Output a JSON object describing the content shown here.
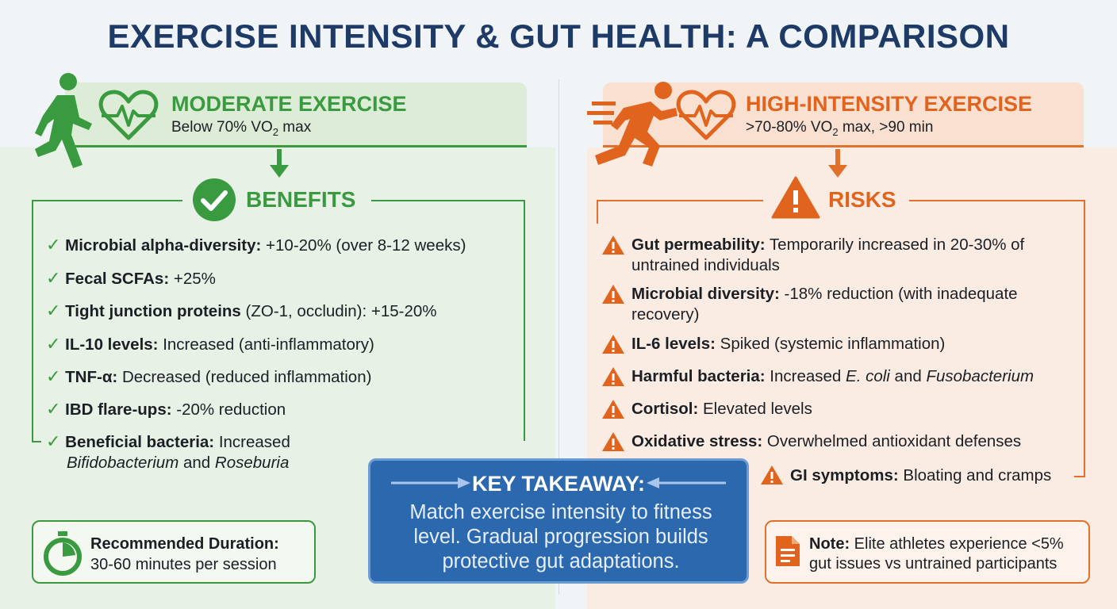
{
  "title": "EXERCISE INTENSITY & GUT HEALTH: A COMPARISON",
  "moderate": {
    "heading": "MODERATE EXERCISE",
    "subtitle_pre": "Below 70% VO",
    "subtitle_sub": "2",
    "subtitle_post": " max",
    "section": "BENEFITS",
    "items": [
      {
        "bold": "Microbial alpha-diversity:",
        "text": " +10-20% (over 8-12 weeks)"
      },
      {
        "bold": "Fecal SCFAs:",
        "text": " +25%"
      },
      {
        "bold": "Tight junction proteins",
        "text": " (ZO-1, occludin): +15-20%"
      },
      {
        "bold": "IL-10 levels:",
        "text": " Increased (anti-inflammatory)"
      },
      {
        "bold": "TNF-α:",
        "text": " Decreased (reduced inflammation)"
      },
      {
        "bold": "IBD flare-ups:",
        "text": " -20% reduction"
      },
      {
        "bold": "Beneficial bacteria:",
        "text": " Increased",
        "it1": "Bifidobacterium",
        "mid": " and ",
        "it2": "Roseburia"
      }
    ],
    "duration_label": "Recommended Duration:",
    "duration_value": "30-60 minutes per session",
    "color": "#3a9a3f"
  },
  "high": {
    "heading": "HIGH-INTENSITY EXERCISE",
    "subtitle_pre": ">70-80% VO",
    "subtitle_sub": "2",
    "subtitle_post": " max, >90 min",
    "section": "RISKS",
    "items": [
      {
        "bold": "Gut permeability:",
        "text": " Temporarily increased in 20-30% of",
        "line2": "untrained individuals"
      },
      {
        "bold": "Microbial diversity:",
        "text": " -18% reduction (with inadequate",
        "line2": "recovery)"
      },
      {
        "bold": "IL-6 levels:",
        "text": " Spiked (systemic inflammation)"
      },
      {
        "bold": "Harmful bacteria:",
        "text": " Increased ",
        "it1": "E. coli",
        "mid": " and ",
        "it2": "Fusobacterium"
      },
      {
        "bold": "Cortisol:",
        "text": " Elevated levels"
      },
      {
        "bold": "Oxidative stress:",
        "text": " Overwhelmed antioxidant defenses"
      },
      {
        "bold": "GI symptoms:",
        "text": " Bloating and cramps"
      }
    ],
    "note_label": "Note:",
    "note_text": " Elite athletes experience <5%",
    "note_line2": "gut issues vs untrained participants",
    "color": "#e0702a"
  },
  "takeaway": {
    "title": "KEY TAKEAWAY:",
    "line1": "Match exercise intensity to fitness",
    "line2": "level. Gradual progression builds",
    "line3": "protective gut adaptations.",
    "color": "#2c68ae"
  },
  "icons": [
    "walking-person-icon",
    "heart-pulse-icon",
    "down-arrow-icon",
    "checkmark-circle-icon",
    "stopwatch-icon",
    "sprinting-person-icon",
    "warning-triangle-icon",
    "document-icon",
    "arrow-right-icon",
    "arrow-left-icon"
  ]
}
